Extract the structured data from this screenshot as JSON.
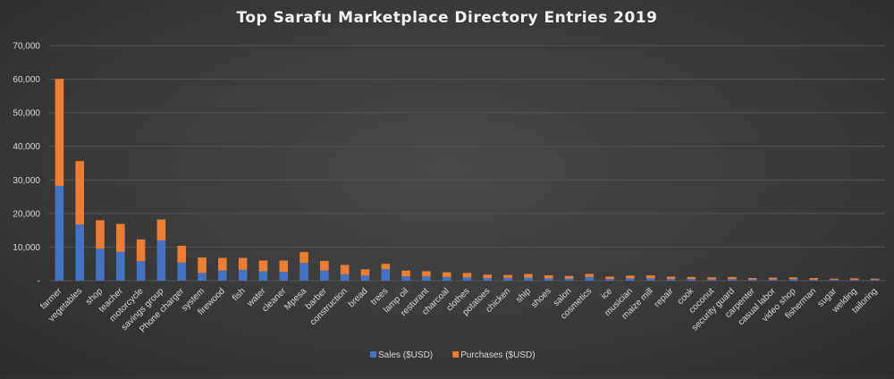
{
  "chart_data": {
    "type": "bar",
    "stacked": true,
    "title": "Top Sarafu Marketplace Directory Entries 2019",
    "xlabel": "",
    "ylabel": "",
    "ylim": [
      0,
      70000
    ],
    "ytick_values": [
      0,
      10000,
      20000,
      30000,
      40000,
      50000,
      60000,
      70000
    ],
    "ytick_labels": [
      "-",
      "10,000",
      "20,000",
      "30,000",
      "40,000",
      "50,000",
      "60,000",
      "70,000"
    ],
    "grid": true,
    "legend_position": "bottom",
    "categories": [
      "farmer",
      "vegetables",
      "shop",
      "teacher",
      "motorcycle",
      "savings group",
      "Phone charger",
      "system",
      "firewood",
      "fish",
      "water",
      "cleaner",
      "Mpesa",
      "barber",
      "construction",
      "bread",
      "trees",
      "lamp oil",
      "resturant",
      "charcoal",
      "clothes",
      "potatoes",
      "chicken",
      "ship",
      "shoes",
      "salon",
      "cosmetics",
      "ice",
      "musician",
      "maize mill",
      "repair",
      "cook",
      "coconut",
      "security guard",
      "carpenter",
      "casual labor",
      "video shop",
      "fisherman",
      "sugar",
      "welding",
      "tailoring"
    ],
    "series": [
      {
        "name": "Sales ($USD)",
        "color": "#4472c4",
        "values": [
          28200,
          16700,
          9500,
          8600,
          5800,
          12000,
          5400,
          2300,
          3000,
          3200,
          2800,
          2600,
          5300,
          3000,
          1900,
          1500,
          3400,
          1300,
          1300,
          1100,
          1000,
          800,
          800,
          900,
          700,
          600,
          1100,
          500,
          700,
          700,
          500,
          500,
          400,
          500,
          400,
          400,
          500,
          300,
          300,
          300,
          300
        ]
      },
      {
        "name": "Purchases ($USD)",
        "color": "#ed7d31",
        "values": [
          31900,
          18900,
          8500,
          8300,
          6500,
          6200,
          5000,
          4600,
          3800,
          3600,
          3200,
          3400,
          3200,
          2900,
          2800,
          1900,
          1600,
          1700,
          1500,
          1400,
          1300,
          1000,
          900,
          1100,
          900,
          800,
          900,
          700,
          800,
          900,
          700,
          600,
          600,
          600,
          400,
          500,
          500,
          500,
          300,
          400,
          300
        ]
      }
    ]
  }
}
